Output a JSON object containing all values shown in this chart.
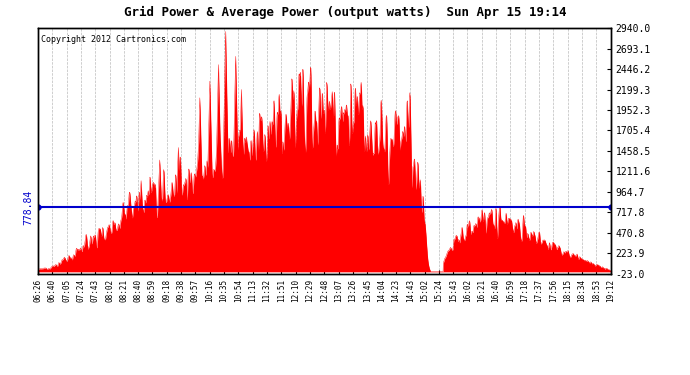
{
  "title": "Grid Power & Average Power (output watts)  Sun Apr 15 19:14",
  "copyright": "Copyright 2012 Cartronics.com",
  "average_line": 778.84,
  "fill_color": "#FF0000",
  "line_color": "#0000CC",
  "background_color": "#FFFFFF",
  "grid_color": "#AAAAAA",
  "yticks": [
    2940.0,
    2693.1,
    2446.2,
    2199.3,
    1952.3,
    1705.4,
    1458.5,
    1211.6,
    964.7,
    717.8,
    470.8,
    223.9,
    -23.0
  ],
  "ymin": -23.0,
  "ymax": 2940.0,
  "xtick_labels": [
    "06:26",
    "06:40",
    "07:05",
    "07:24",
    "07:43",
    "08:02",
    "08:21",
    "08:40",
    "08:59",
    "09:18",
    "09:38",
    "09:57",
    "10:16",
    "10:35",
    "10:54",
    "11:13",
    "11:32",
    "11:51",
    "12:10",
    "12:29",
    "12:48",
    "13:07",
    "13:26",
    "13:45",
    "14:04",
    "14:23",
    "14:43",
    "15:02",
    "15:24",
    "15:43",
    "16:02",
    "16:21",
    "16:40",
    "16:59",
    "17:18",
    "17:37",
    "17:56",
    "18:15",
    "18:34",
    "18:53",
    "19:12"
  ]
}
